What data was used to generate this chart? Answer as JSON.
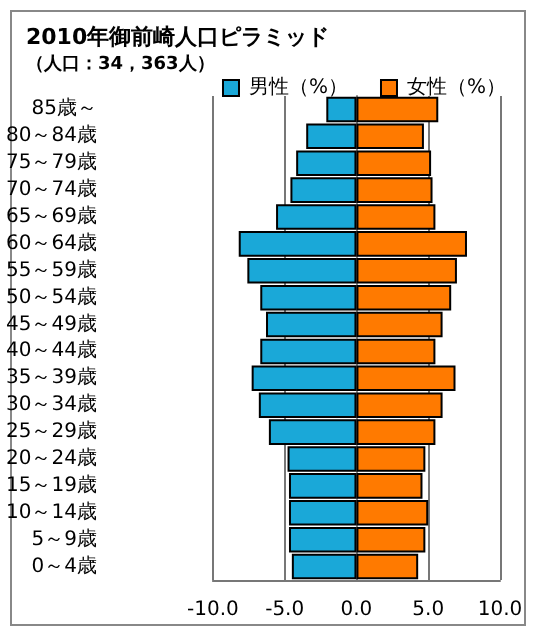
{
  "chart_data": {
    "type": "bar",
    "orientation": "horizontal",
    "stacked": true,
    "title": "2010年御前崎人口ピラミッド",
    "subtitle": "（人口：34，363人）",
    "categories": [
      "85歳～",
      "80～84歳",
      "75～79歳",
      "70～74歳",
      "65～69歳",
      "60～64歳",
      "55～59歳",
      "50～54歳",
      "45～49歳",
      "40～44歳",
      "35～39歳",
      "30～34歳",
      "25～29歳",
      "20～24歳",
      "15～19歳",
      "10～14歳",
      "5～9歳",
      "0～4歳"
    ],
    "series": [
      {
        "name": "男性（%）",
        "color": "#1aa8d8",
        "values": [
          -2.1,
          -3.5,
          -4.2,
          -4.6,
          -5.6,
          -8.2,
          -7.6,
          -6.7,
          -6.3,
          -6.7,
          -7.3,
          -6.8,
          -6.1,
          -4.8,
          -4.7,
          -4.7,
          -4.7,
          -4.5
        ]
      },
      {
        "name": "女性（%）",
        "color": "#ff7a00",
        "values": [
          5.7,
          4.7,
          5.2,
          5.3,
          5.5,
          7.7,
          7.0,
          6.6,
          6.0,
          5.5,
          6.9,
          6.0,
          5.5,
          4.8,
          4.6,
          5.0,
          4.8,
          4.3
        ]
      }
    ],
    "xlim": [
      -10,
      10
    ],
    "xticks": [
      {
        "value": -10,
        "label": "-10.0"
      },
      {
        "value": -5,
        "label": "-5.0"
      },
      {
        "value": 0,
        "label": "0.0"
      },
      {
        "value": 5,
        "label": "5.0"
      },
      {
        "value": 10,
        "label": "10.0"
      }
    ],
    "grid": "x",
    "legend": "top right"
  }
}
